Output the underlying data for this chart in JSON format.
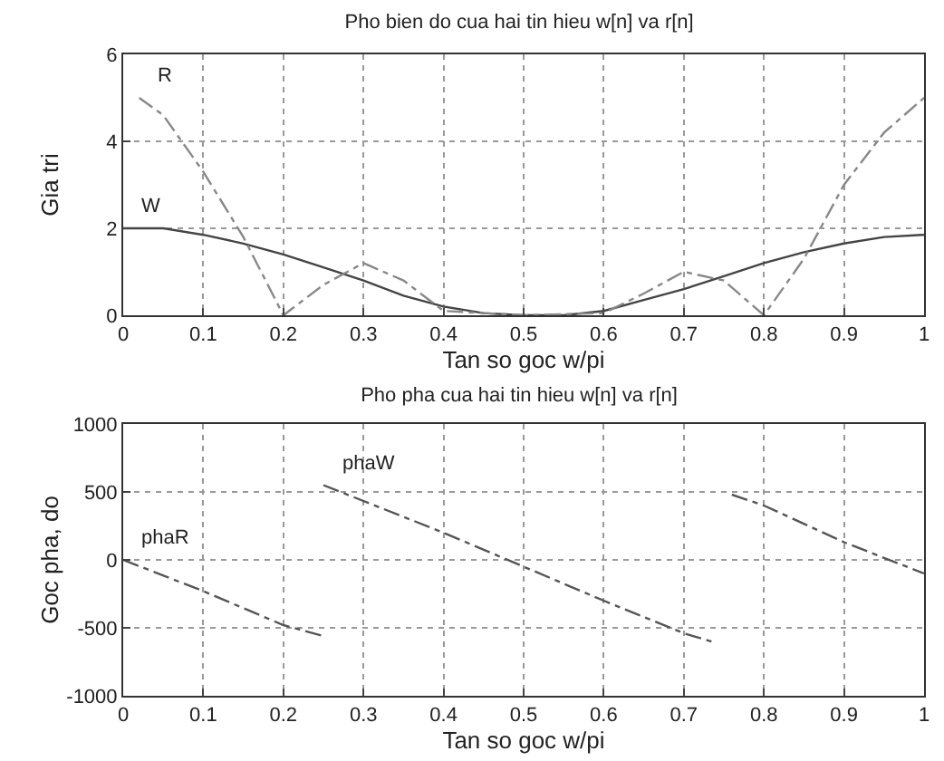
{
  "chart_data": [
    {
      "type": "line",
      "title": "Pho bien do cua hai tin hieu w[n] va r[n]",
      "xlabel": "Tan so goc w/pi",
      "ylabel": "Gia tri",
      "series": [
        {
          "name": "W",
          "color": "#444444",
          "line_style": "solid",
          "x": [
            0,
            0.05,
            0.1,
            0.15,
            0.2,
            0.25,
            0.3,
            0.35,
            0.4,
            0.45,
            0.5,
            0.55,
            0.6,
            0.65,
            0.7,
            0.75,
            0.8,
            0.85,
            0.9,
            0.95,
            1
          ],
          "values": [
            2,
            2,
            1.85,
            1.65,
            1.4,
            1.1,
            0.8,
            0.45,
            0.2,
            0.05,
            0,
            0,
            0.1,
            0.35,
            0.6,
            0.9,
            1.2,
            1.45,
            1.65,
            1.8,
            1.85
          ]
        },
        {
          "name": "R",
          "color": "#888888",
          "line_style": "dashed",
          "x": [
            0.02,
            0.05,
            0.1,
            0.15,
            0.2,
            0.25,
            0.3,
            0.35,
            0.4,
            0.5,
            0.6,
            0.65,
            0.7,
            0.75,
            0.8,
            0.85,
            0.9,
            0.95,
            1
          ],
          "values": [
            5,
            4.6,
            3.3,
            1.8,
            0,
            0.7,
            1.2,
            0.8,
            0.1,
            0,
            0.05,
            0.5,
            1,
            0.8,
            0,
            1.3,
            3,
            4.2,
            5
          ]
        }
      ],
      "xlim": [
        0,
        1
      ],
      "ylim": [
        0,
        6
      ],
      "xticks": [
        0,
        0.1,
        0.2,
        0.3,
        0.4,
        0.5,
        0.6,
        0.7,
        0.8,
        0.9,
        1
      ],
      "yticks": [
        0,
        2,
        4,
        6
      ],
      "grid": true
    },
    {
      "type": "line",
      "title": "Pho pha cua hai tin hieu w[n] va r[n]",
      "xlabel": "Tan so goc w/pi",
      "ylabel": "Goc pha, do",
      "series": [
        {
          "name": "phaW",
          "color": "#555555",
          "line_style": "dashed",
          "x": [
            0.25,
            0.4,
            0.5,
            0.6,
            0.7,
            0.74,
            0.75,
            0.76,
            0.8,
            0.9,
            1
          ],
          "values": [
            550,
            200,
            -50,
            -300,
            -540,
            -610,
            null,
            480,
            400,
            130,
            -100
          ]
        },
        {
          "name": "phaR",
          "color": "#555555",
          "line_style": "dashed",
          "x": [
            0,
            0.1,
            0.2,
            0.25
          ],
          "values": [
            0,
            -230,
            -480,
            -560
          ]
        }
      ],
      "xlim": [
        0,
        1
      ],
      "ylim": [
        -1000,
        1000
      ],
      "xticks": [
        0,
        0.1,
        0.2,
        0.3,
        0.4,
        0.5,
        0.6,
        0.7,
        0.8,
        0.9,
        1
      ],
      "yticks": [
        -1000,
        -500,
        0,
        500,
        1000
      ],
      "grid": true
    }
  ]
}
